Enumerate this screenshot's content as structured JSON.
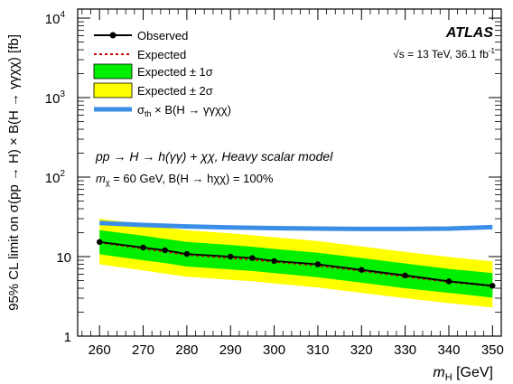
{
  "chart_data": {
    "type": "line",
    "yscale": "log",
    "xlabel_main": "m",
    "xlabel_sub": "H",
    "xlabel_unit": " [GeV]",
    "ylabel": "95% CL limit on σ(pp → H) × B(H → γγχχ) [fb]",
    "xlim": [
      255,
      352
    ],
    "ylim": [
      1,
      13000
    ],
    "x_ticks": [
      260,
      270,
      280,
      290,
      300,
      310,
      320,
      330,
      340,
      350
    ],
    "y_ticks": [
      {
        "value": 1,
        "label": "1",
        "exp": ""
      },
      {
        "value": 10,
        "label": "10",
        "exp": ""
      },
      {
        "value": 100,
        "label": "10",
        "exp": "2"
      },
      {
        "value": 1000,
        "label": "10",
        "exp": "3"
      },
      {
        "value": 10000,
        "label": "10",
        "exp": "4"
      }
    ],
    "x": [
      260,
      270,
      275,
      280,
      290,
      295,
      300,
      310,
      320,
      330,
      340,
      350
    ],
    "series": [
      {
        "name": "Observed",
        "color": "#000000",
        "values": [
          15.3,
          13.0,
          12.0,
          10.8,
          10.0,
          9.6,
          8.8,
          8.0,
          6.8,
          5.8,
          4.9,
          4.3
        ]
      },
      {
        "name": "Expected",
        "color": "#cc0000",
        "values": [
          15.0,
          12.6,
          11.5,
          10.5,
          9.6,
          9.1,
          8.6,
          7.7,
          6.6,
          5.6,
          4.8,
          4.25
        ]
      },
      {
        "name": "Expected ± 1σ",
        "color": "#00ee00",
        "lower": [
          10.7,
          9.0,
          8.3,
          7.5,
          6.9,
          6.6,
          6.2,
          5.5,
          4.7,
          4.0,
          3.5,
          3.05
        ],
        "upper": [
          21.5,
          18.3,
          16.7,
          15.3,
          14.0,
          13.3,
          12.5,
          11.2,
          9.6,
          8.2,
          7.0,
          6.2
        ]
      },
      {
        "name": "Expected ± 2σ",
        "color": "#ffff00",
        "lower": [
          8.0,
          6.7,
          6.1,
          5.6,
          5.1,
          4.9,
          4.6,
          4.1,
          3.5,
          3.0,
          2.6,
          2.3
        ],
        "upper": [
          30.0,
          25.5,
          23.3,
          21.4,
          19.6,
          18.6,
          17.5,
          15.7,
          13.4,
          11.5,
          9.9,
          8.7
        ]
      },
      {
        "name": "σ_th × B(H → γγχχ)",
        "color": "#3a8ee6",
        "x": [
          260,
          270,
          280,
          290,
          300,
          310,
          320,
          330,
          340,
          350
        ],
        "values": [
          26.5,
          25.0,
          24.0,
          23.3,
          22.8,
          22.5,
          22.3,
          22.3,
          22.5,
          23.5
        ]
      }
    ],
    "legend": {
      "placement": "top-left",
      "entries": [
        "Observed",
        "Expected",
        "Expected ± 1σ",
        "Expected ± 2σ"
      ],
      "theory_label_main": "σ",
      "theory_label_sub": "th",
      "theory_label_rest": " × B(H → γγχχ)"
    },
    "annotations": {
      "experiment": "ATLAS",
      "energy_prefix": "√s",
      "energy_text": " = 13 TeV, 36.1 fb",
      "energy_exp": "-1",
      "model_text": "pp → H → h(γγ) + χχ, Heavy scalar model",
      "params_prefix": "m",
      "params_sub": "χ",
      "params_text": " = 60 GeV, B(H → hχχ) = 100%"
    },
    "grid": false
  }
}
